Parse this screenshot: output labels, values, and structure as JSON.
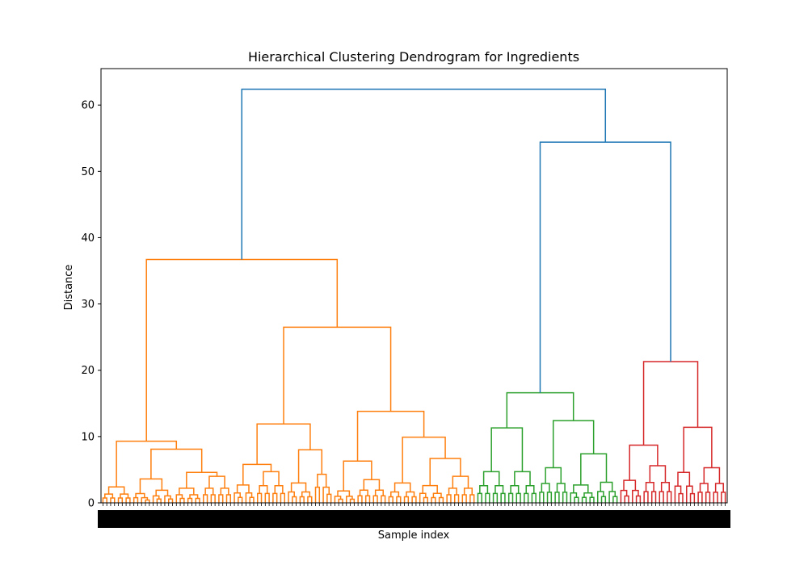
{
  "chart_data": {
    "type": "dendrogram",
    "title": "Hierarchical Clustering Dendrogram for Ingredients",
    "xlabel": "Sample index",
    "ylabel": "Distance",
    "ylim": [
      0,
      65.5
    ],
    "yticks": [
      0,
      10,
      20,
      30,
      40,
      50,
      60
    ],
    "grid": false,
    "colors": {
      "root": "#1f77b4",
      "cluster1": "#ff7f0e",
      "cluster2": "#2ca02c",
      "cluster3": "#d62728",
      "axes": "#000000",
      "tick_label": "#000000"
    },
    "linkage": {
      "root": {
        "height": 62.4,
        "left": {
          "height": 36.7,
          "color": "cluster1",
          "left": {
            "height": 9.3,
            "left": {
              "height": 2.4,
              "leaves": 8
            },
            "right": {
              "height": 8.1,
              "left": {
                "height": 3.6,
                "left": {
                  "height": 1.4,
                  "leaves": 5
                },
                "right": {
                  "height": 1.9,
                  "leaves": 6
                }
              },
              "right": {
                "height": 4.6,
                "left": {
                  "height": 2.2,
                  "leaves": 7
                },
                "right": {
                  "height": 4.0,
                  "leaves": 8
                }
              }
            }
          },
          "right": {
            "height": 26.5,
            "left": {
              "height": 11.9,
              "left": {
                "height": 5.8,
                "left": {
                  "height": 2.7,
                  "leaves": 6
                },
                "right": {
                  "height": 4.7,
                  "leaves": 8
                }
              },
              "right": {
                "height": 8.0,
                "left": {
                  "height": 3.0,
                  "leaves": 7
                },
                "right": {
                  "height": 4.3,
                  "leaves": 5
                }
              }
            },
            "right": {
              "height": 13.8,
              "left": {
                "height": 6.3,
                "left": {
                  "height": 1.8,
                  "leaves": 6
                },
                "right": {
                  "height": 3.5,
                  "leaves": 8
                }
              },
              "right": {
                "height": 9.9,
                "left": {
                  "height": 3.0,
                  "leaves": 8
                },
                "right": {
                  "height": 6.7,
                  "left": {
                    "height": 2.6,
                    "leaves": 7
                  },
                  "right": {
                    "height": 4.0,
                    "leaves": 8
                  }
                }
              }
            }
          }
        },
        "right": {
          "height": 54.4,
          "left": {
            "height": 16.6,
            "color": "cluster2",
            "left": {
              "height": 11.3,
              "left": {
                "height": 4.7,
                "leaves": 8
              },
              "right": {
                "height": 4.7,
                "leaves": 8
              }
            },
            "right": {
              "height": 12.4,
              "left": {
                "height": 5.3,
                "leaves": 8
              },
              "right": {
                "height": 7.4,
                "left": {
                  "height": 2.7,
                  "leaves": 7
                },
                "right": {
                  "height": 3.1,
                  "leaves": 6
                }
              }
            }
          },
          "right": {
            "height": 21.3,
            "color": "cluster3",
            "left": {
              "height": 8.7,
              "left": {
                "height": 3.4,
                "leaves": 6
              },
              "right": {
                "height": 5.6,
                "leaves": 8
              }
            },
            "right": {
              "height": 11.4,
              "left": {
                "height": 4.6,
                "leaves": 6
              },
              "right": {
                "height": 5.3,
                "leaves": 8
              }
            }
          }
        }
      }
    }
  }
}
